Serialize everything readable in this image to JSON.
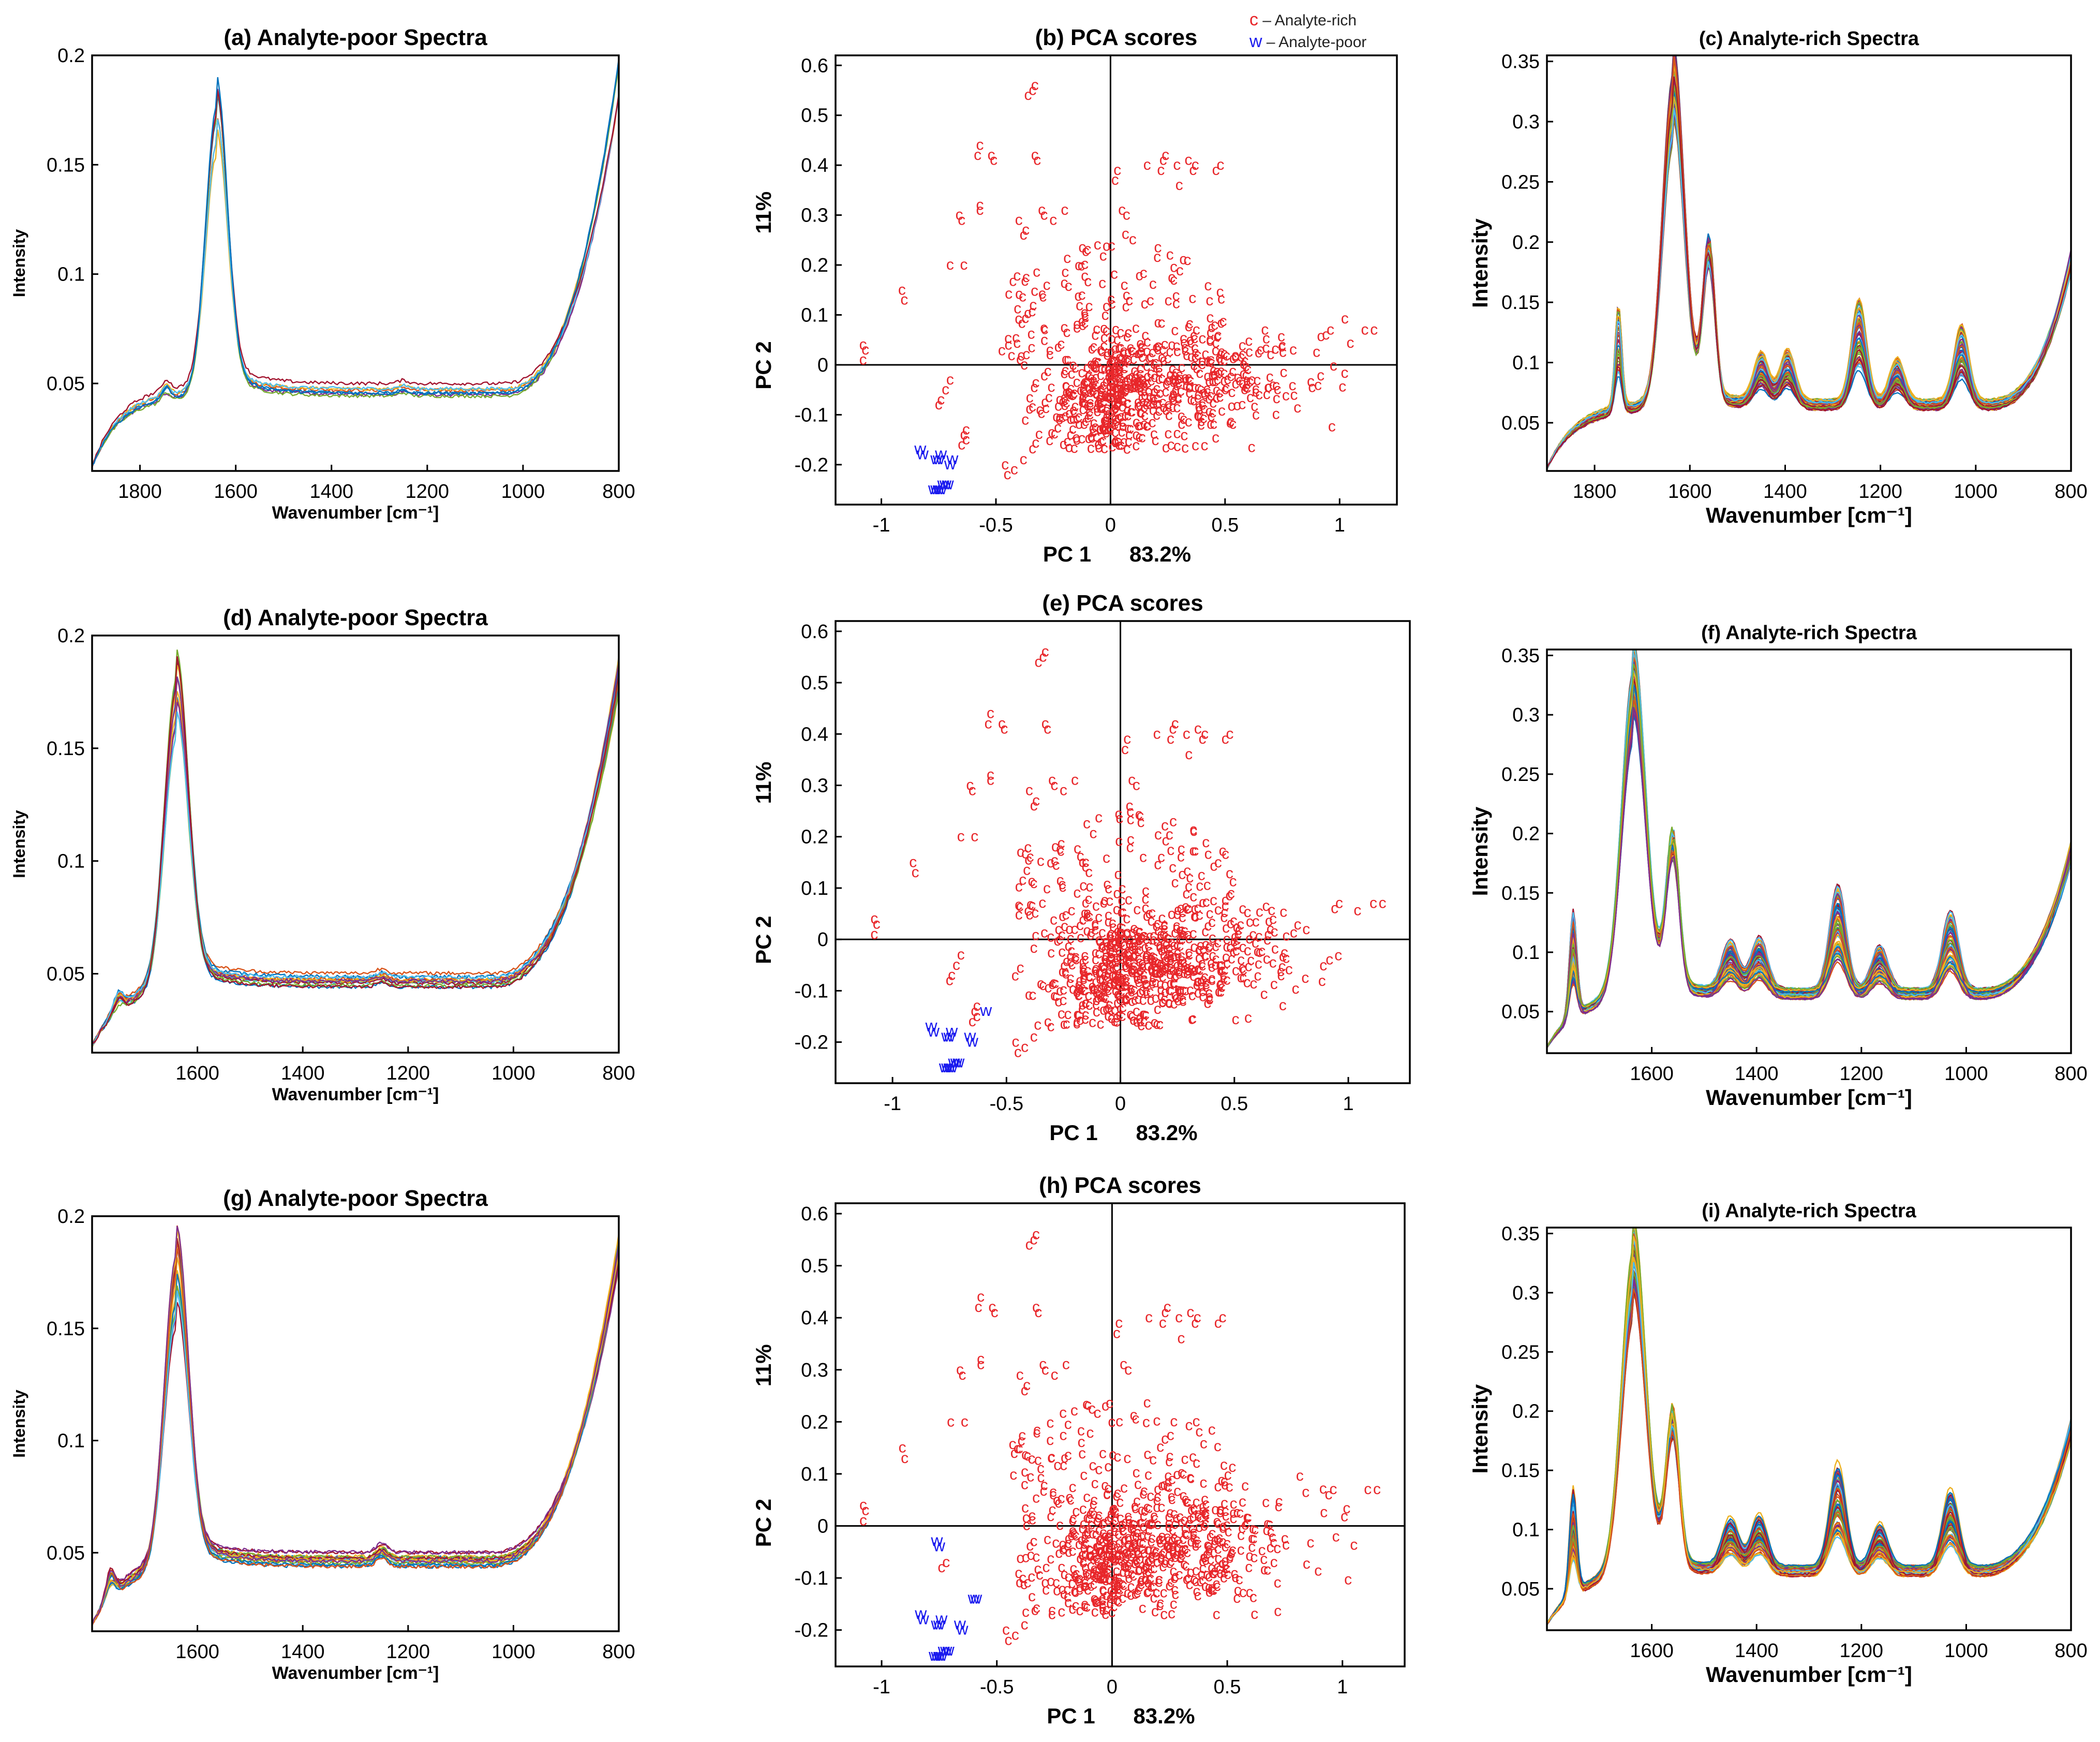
{
  "legend": {
    "rich_marker": "c",
    "rich_label": "– Analyte-rich",
    "poor_marker": "w",
    "poor_label": "– Analyte-poor"
  },
  "colors": {
    "rich": "#e8262a",
    "poor": "#1a1aee",
    "axis": "#000000",
    "spectra_palette": [
      "#0072bd",
      "#d95319",
      "#edb120",
      "#7e2f8e",
      "#77ac30",
      "#4dbeee",
      "#a2142f"
    ]
  },
  "chart_data": [
    {
      "id": "a",
      "type": "line",
      "title": "(a) Analyte-poor Spectra",
      "xlabel": "Wavenumber [cm⁻¹]",
      "ylabel": "Intensity",
      "xlim": [
        1900,
        800
      ],
      "ylim": [
        0.01,
        0.2
      ],
      "xticks": [
        1800,
        1600,
        1400,
        1200,
        1000,
        800
      ],
      "yticks": [
        0.05,
        0.1,
        0.15,
        0.2
      ],
      "series_count": 8,
      "shape": {
        "start": 0.012,
        "peak_main": 0.165,
        "peak_main_x": 1640,
        "shoulder_x": 1745,
        "shoulder_h": 0.004,
        "base": 0.047,
        "bump_x": 1250,
        "bump_h": 0.0015,
        "rise_start": 1050,
        "end": 0.195
      }
    },
    {
      "id": "b",
      "type": "scatter",
      "title": "(b) PCA scores",
      "xlabel": "PC 1",
      "xlabel_pct": "83.2%",
      "ylabel": "PC 2",
      "ylabel_pct": "11%",
      "xlim": [
        -1.2,
        1.25
      ],
      "ylim": [
        -0.28,
        0.62
      ],
      "xticks": [
        -1,
        -0.5,
        0,
        0.5,
        1
      ],
      "yticks": [
        -0.2,
        -0.1,
        0,
        0.1,
        0.2,
        0.3,
        0.4,
        0.5,
        0.6
      ],
      "rich_points": [
        [
          -0.36,
          0.54
        ],
        [
          -0.34,
          0.55
        ],
        [
          -0.33,
          0.56
        ],
        [
          -0.58,
          0.42
        ],
        [
          -0.57,
          0.44
        ],
        [
          -0.52,
          0.42
        ],
        [
          -0.51,
          0.41
        ],
        [
          -0.33,
          0.42
        ],
        [
          -0.32,
          0.41
        ],
        [
          0.03,
          0.39
        ],
        [
          0.02,
          0.37
        ],
        [
          0.16,
          0.4
        ],
        [
          0.24,
          0.42
        ],
        [
          0.23,
          0.41
        ],
        [
          0.22,
          0.39
        ],
        [
          0.29,
          0.4
        ],
        [
          0.37,
          0.4
        ],
        [
          0.36,
          0.39
        ],
        [
          0.34,
          0.41
        ],
        [
          0.48,
          0.4
        ],
        [
          0.46,
          0.39
        ],
        [
          0.3,
          0.36
        ],
        [
          -0.66,
          0.3
        ],
        [
          -0.65,
          0.29
        ],
        [
          -0.57,
          0.32
        ],
        [
          -0.57,
          0.31
        ],
        [
          -0.4,
          0.29
        ],
        [
          -0.3,
          0.31
        ],
        [
          -0.29,
          0.3
        ],
        [
          -0.25,
          0.29
        ],
        [
          -0.2,
          0.31
        ],
        [
          0.05,
          0.31
        ],
        [
          0.07,
          0.3
        ],
        [
          -0.37,
          0.27
        ],
        [
          -0.38,
          0.26
        ],
        [
          -0.64,
          0.2
        ],
        [
          -0.7,
          0.2
        ],
        [
          -0.91,
          0.15
        ],
        [
          -0.9,
          0.13
        ],
        [
          -1.08,
          0.04
        ],
        [
          -1.07,
          0.03
        ],
        [
          -1.08,
          0.01
        ],
        [
          1.15,
          0.07
        ],
        [
          1.11,
          0.07
        ],
        [
          0.96,
          0.07
        ],
        [
          0.94,
          0.06
        ],
        [
          -0.7,
          -0.03
        ],
        [
          -0.72,
          -0.05
        ],
        [
          -0.74,
          -0.07
        ],
        [
          -0.75,
          -0.08
        ],
        [
          -0.63,
          -0.13
        ],
        [
          -0.64,
          -0.14
        ],
        [
          -0.65,
          -0.16
        ],
        [
          -0.63,
          -0.15
        ],
        [
          -0.46,
          -0.2
        ],
        [
          -0.45,
          -0.22
        ],
        [
          -0.42,
          -0.21
        ],
        [
          -0.38,
          -0.19
        ]
      ],
      "rich_cloud": {
        "count": 640,
        "x_center": 0.05,
        "y_center": -0.06,
        "spread_right": 1.0,
        "spread_left": 0.45
      },
      "poor_points": [
        [
          -0.83,
          -0.17
        ],
        [
          -0.82,
          -0.18
        ],
        [
          -0.76,
          -0.19
        ],
        [
          -0.75,
          -0.19
        ],
        [
          -0.74,
          -0.18
        ],
        [
          -0.7,
          -0.2
        ],
        [
          -0.69,
          -0.19
        ],
        [
          -0.77,
          -0.25
        ],
        [
          -0.76,
          -0.25
        ],
        [
          -0.75,
          -0.25
        ],
        [
          -0.74,
          -0.25
        ],
        [
          -0.73,
          -0.24
        ],
        [
          -0.71,
          -0.24
        ],
        [
          -0.72,
          -0.24
        ]
      ]
    },
    {
      "id": "c",
      "type": "line",
      "title": "(c) Analyte-rich Spectra",
      "xlabel": "Wavenumber [cm⁻¹]",
      "ylabel": "Intensity",
      "xlim": [
        1900,
        800
      ],
      "ylim": [
        0.01,
        0.355
      ],
      "xticks": [
        1800,
        1600,
        1400,
        1200,
        1000,
        800
      ],
      "yticks": [
        0.05,
        0.1,
        0.15,
        0.2,
        0.25,
        0.3,
        0.35
      ],
      "series_count": 70,
      "shape": {
        "start": 0.012,
        "peak_main": 0.31,
        "peak_main_x": 1635,
        "peak2": 0.2,
        "peak2_x": 1560,
        "peak3_x": 1750,
        "peak3_h": 0.1,
        "bands": [
          [
            1450,
            0.028
          ],
          [
            1395,
            0.03
          ],
          [
            1245,
            0.06
          ],
          [
            1165,
            0.025
          ],
          [
            1030,
            0.045
          ]
        ],
        "base": 0.065,
        "rise_start": 980,
        "end": 0.19
      }
    },
    {
      "id": "d",
      "type": "line",
      "title": "(d) Analyte-poor Spectra",
      "xlabel": "Wavenumber [cm⁻¹]",
      "ylabel": "Intensity",
      "xlim": [
        1800,
        800
      ],
      "ylim": [
        0.015,
        0.2
      ],
      "xticks": [
        1600,
        1400,
        1200,
        1000,
        800
      ],
      "yticks": [
        0.05,
        0.1,
        0.15,
        0.2
      ],
      "series_count": 14,
      "shape": {
        "start": 0.018,
        "peak_main": 0.168,
        "peak_main_x": 1640,
        "shoulder_x": 1750,
        "shoulder_h": 0.005,
        "base": 0.047,
        "bump_x": 1250,
        "bump_h": 0.002,
        "rise_start": 1050,
        "end": 0.19
      }
    },
    {
      "id": "e",
      "type": "scatter",
      "title": "(e) PCA scores",
      "xlabel": "PC 1",
      "xlabel_pct": "83.2%",
      "ylabel": "PC 2",
      "ylabel_pct": "11%",
      "xlim": [
        -1.25,
        1.27
      ],
      "ylim": [
        -0.28,
        0.62
      ],
      "xticks": [
        -1,
        -0.5,
        0,
        0.5,
        1
      ],
      "yticks": [
        -0.2,
        -0.1,
        0,
        0.1,
        0.2,
        0.3,
        0.4,
        0.5,
        0.6
      ],
      "rich_points": [
        [
          -0.36,
          0.54
        ],
        [
          -0.34,
          0.55
        ],
        [
          -0.33,
          0.56
        ],
        [
          -0.58,
          0.42
        ],
        [
          -0.57,
          0.44
        ],
        [
          -0.52,
          0.42
        ],
        [
          -0.51,
          0.41
        ],
        [
          -0.33,
          0.42
        ],
        [
          -0.32,
          0.41
        ],
        [
          0.03,
          0.39
        ],
        [
          0.02,
          0.37
        ],
        [
          0.16,
          0.4
        ],
        [
          0.24,
          0.42
        ],
        [
          0.23,
          0.41
        ],
        [
          0.22,
          0.39
        ],
        [
          0.29,
          0.4
        ],
        [
          0.37,
          0.4
        ],
        [
          0.36,
          0.39
        ],
        [
          0.34,
          0.41
        ],
        [
          0.48,
          0.4
        ],
        [
          0.46,
          0.39
        ],
        [
          0.3,
          0.36
        ],
        [
          -0.66,
          0.3
        ],
        [
          -0.65,
          0.29
        ],
        [
          -0.57,
          0.32
        ],
        [
          -0.57,
          0.31
        ],
        [
          -0.4,
          0.29
        ],
        [
          -0.3,
          0.31
        ],
        [
          -0.29,
          0.3
        ],
        [
          -0.25,
          0.29
        ],
        [
          -0.2,
          0.31
        ],
        [
          0.05,
          0.31
        ],
        [
          0.07,
          0.3
        ],
        [
          -0.37,
          0.27
        ],
        [
          -0.38,
          0.26
        ],
        [
          -0.64,
          0.2
        ],
        [
          -0.7,
          0.2
        ],
        [
          -0.91,
          0.15
        ],
        [
          -0.9,
          0.13
        ],
        [
          -1.08,
          0.04
        ],
        [
          -1.07,
          0.03
        ],
        [
          -1.08,
          0.01
        ],
        [
          1.15,
          0.07
        ],
        [
          1.11,
          0.07
        ],
        [
          0.96,
          0.07
        ],
        [
          0.94,
          0.06
        ],
        [
          -0.7,
          -0.03
        ],
        [
          -0.72,
          -0.05
        ],
        [
          -0.74,
          -0.07
        ],
        [
          -0.75,
          -0.08
        ],
        [
          -0.63,
          -0.13
        ],
        [
          -0.64,
          -0.14
        ],
        [
          -0.65,
          -0.16
        ],
        [
          -0.63,
          -0.15
        ],
        [
          -0.46,
          -0.2
        ],
        [
          -0.45,
          -0.22
        ],
        [
          -0.42,
          -0.21
        ],
        [
          -0.38,
          -0.19
        ]
      ],
      "rich_cloud": {
        "count": 660,
        "x_center": 0.05,
        "y_center": -0.06,
        "spread_right": 1.0,
        "spread_left": 0.45
      },
      "poor_points": [
        [
          -0.83,
          -0.17
        ],
        [
          -0.82,
          -0.18
        ],
        [
          -0.76,
          -0.19
        ],
        [
          -0.75,
          -0.19
        ],
        [
          -0.74,
          -0.18
        ],
        [
          -0.66,
          -0.19
        ],
        [
          -0.65,
          -0.2
        ],
        [
          -0.59,
          -0.14
        ],
        [
          -0.77,
          -0.25
        ],
        [
          -0.76,
          -0.25
        ],
        [
          -0.75,
          -0.25
        ],
        [
          -0.74,
          -0.25
        ],
        [
          -0.73,
          -0.24
        ],
        [
          -0.71,
          -0.24
        ],
        [
          -0.72,
          -0.24
        ]
      ]
    },
    {
      "id": "f",
      "type": "line",
      "title": "(f) Analyte-rich Spectra",
      "xlabel": "Wavenumber [cm⁻¹]",
      "ylabel": "Intensity",
      "xlim": [
        1800,
        800
      ],
      "ylim": [
        0.015,
        0.355
      ],
      "xticks": [
        1600,
        1400,
        1200,
        1000,
        800
      ],
      "yticks": [
        0.05,
        0.1,
        0.15,
        0.2,
        0.25,
        0.3,
        0.35
      ],
      "series_count": 75,
      "shape": {
        "start": 0.02,
        "peak_main": 0.31,
        "peak_main_x": 1635,
        "peak2": 0.2,
        "peak2_x": 1560,
        "peak3_x": 1750,
        "peak3_h": 0.1,
        "bands": [
          [
            1450,
            0.028
          ],
          [
            1395,
            0.03
          ],
          [
            1245,
            0.06
          ],
          [
            1165,
            0.025
          ],
          [
            1030,
            0.045
          ]
        ],
        "base": 0.065,
        "rise_start": 980,
        "end": 0.19
      }
    },
    {
      "id": "g",
      "type": "line",
      "title": "(g) Analyte-poor Spectra",
      "xlabel": "Wavenumber [cm⁻¹]",
      "ylabel": "Intensity",
      "xlim": [
        1800,
        800
      ],
      "ylim": [
        0.015,
        0.2
      ],
      "xticks": [
        1600,
        1400,
        1200,
        1000,
        800
      ],
      "yticks": [
        0.05,
        0.1,
        0.15,
        0.2
      ],
      "series_count": 18,
      "shape": {
        "start": 0.018,
        "peak_main": 0.168,
        "peak_main_x": 1640,
        "shoulder_x": 1765,
        "shoulder_h": 0.008,
        "base": 0.047,
        "bump_x": 1250,
        "bump_h": 0.004,
        "rise_start": 1050,
        "end": 0.19
      }
    },
    {
      "id": "h",
      "type": "scatter",
      "title": "(h) PCA scores",
      "xlabel": "PC 1",
      "xlabel_pct": "83.2%",
      "ylabel": "PC 2",
      "ylabel_pct": "11%",
      "xlim": [
        -1.2,
        1.27
      ],
      "ylim": [
        -0.27,
        0.62
      ],
      "xticks": [
        -1,
        -0.5,
        0,
        0.5,
        1
      ],
      "yticks": [
        -0.2,
        -0.1,
        0,
        0.1,
        0.2,
        0.3,
        0.4,
        0.5,
        0.6
      ],
      "rich_points": [
        [
          -0.36,
          0.54
        ],
        [
          -0.34,
          0.55
        ],
        [
          -0.33,
          0.56
        ],
        [
          -0.58,
          0.42
        ],
        [
          -0.57,
          0.44
        ],
        [
          -0.52,
          0.42
        ],
        [
          -0.51,
          0.41
        ],
        [
          -0.33,
          0.42
        ],
        [
          -0.32,
          0.41
        ],
        [
          0.03,
          0.39
        ],
        [
          0.02,
          0.37
        ],
        [
          0.16,
          0.4
        ],
        [
          0.24,
          0.42
        ],
        [
          0.23,
          0.41
        ],
        [
          0.22,
          0.39
        ],
        [
          0.29,
          0.4
        ],
        [
          0.37,
          0.4
        ],
        [
          0.36,
          0.39
        ],
        [
          0.34,
          0.41
        ],
        [
          0.48,
          0.4
        ],
        [
          0.46,
          0.39
        ],
        [
          0.3,
          0.36
        ],
        [
          -0.66,
          0.3
        ],
        [
          -0.65,
          0.29
        ],
        [
          -0.57,
          0.32
        ],
        [
          -0.57,
          0.31
        ],
        [
          -0.4,
          0.29
        ],
        [
          -0.3,
          0.31
        ],
        [
          -0.29,
          0.3
        ],
        [
          -0.25,
          0.29
        ],
        [
          -0.2,
          0.31
        ],
        [
          0.05,
          0.31
        ],
        [
          0.07,
          0.3
        ],
        [
          -0.37,
          0.27
        ],
        [
          -0.38,
          0.26
        ],
        [
          -0.64,
          0.2
        ],
        [
          -0.7,
          0.2
        ],
        [
          -0.91,
          0.15
        ],
        [
          -0.9,
          0.13
        ],
        [
          -1.08,
          0.04
        ],
        [
          -1.07,
          0.03
        ],
        [
          -1.08,
          0.01
        ],
        [
          1.15,
          0.07
        ],
        [
          1.11,
          0.07
        ],
        [
          0.96,
          0.07
        ],
        [
          0.94,
          0.06
        ],
        [
          -0.72,
          -0.07
        ],
        [
          -0.74,
          -0.08
        ],
        [
          -0.46,
          -0.2
        ],
        [
          -0.45,
          -0.22
        ],
        [
          -0.42,
          -0.21
        ],
        [
          -0.38,
          -0.19
        ]
      ],
      "rich_cloud": {
        "count": 650,
        "x_center": 0.05,
        "y_center": -0.06,
        "spread_right": 1.0,
        "spread_left": 0.45
      },
      "poor_points": [
        [
          -0.76,
          -0.03
        ],
        [
          -0.75,
          -0.04
        ],
        [
          -0.6,
          -0.14
        ],
        [
          -0.59,
          -0.14
        ],
        [
          -0.66,
          -0.19
        ],
        [
          -0.65,
          -0.2
        ],
        [
          -0.83,
          -0.17
        ],
        [
          -0.82,
          -0.18
        ],
        [
          -0.76,
          -0.19
        ],
        [
          -0.75,
          -0.19
        ],
        [
          -0.74,
          -0.18
        ],
        [
          -0.77,
          -0.25
        ],
        [
          -0.76,
          -0.25
        ],
        [
          -0.75,
          -0.25
        ],
        [
          -0.74,
          -0.25
        ],
        [
          -0.73,
          -0.24
        ],
        [
          -0.71,
          -0.24
        ],
        [
          -0.72,
          -0.24
        ]
      ]
    },
    {
      "id": "i",
      "type": "line",
      "title": "(i) Analyte-rich Spectra",
      "xlabel": "Wavenumber [cm⁻¹]",
      "ylabel": "Intensity",
      "xlim": [
        1800,
        800
      ],
      "ylim": [
        0.015,
        0.355
      ],
      "xticks": [
        1600,
        1400,
        1200,
        1000,
        800
      ],
      "yticks": [
        0.05,
        0.1,
        0.15,
        0.2,
        0.25,
        0.3,
        0.35
      ],
      "series_count": 80,
      "shape": {
        "start": 0.02,
        "peak_main": 0.31,
        "peak_main_x": 1635,
        "peak2": 0.2,
        "peak2_x": 1560,
        "peak3_x": 1750,
        "peak3_h": 0.1,
        "bands": [
          [
            1450,
            0.028
          ],
          [
            1395,
            0.03
          ],
          [
            1245,
            0.06
          ],
          [
            1165,
            0.025
          ],
          [
            1030,
            0.045
          ]
        ],
        "base": 0.065,
        "rise_start": 980,
        "end": 0.19
      }
    }
  ]
}
